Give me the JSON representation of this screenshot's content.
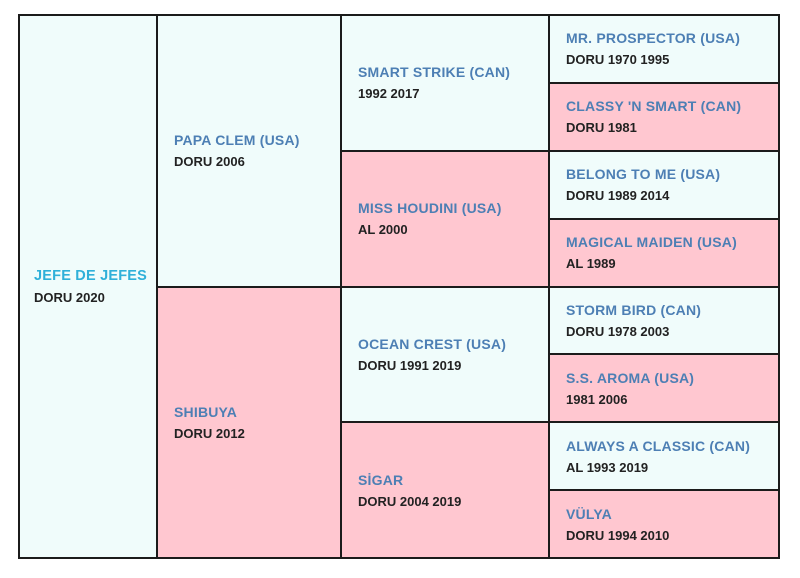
{
  "pedigree": {
    "subject": {
      "name": "JEFE DE JEFES",
      "info": "DORU 2020"
    },
    "sire": {
      "name": "PAPA CLEM (USA)",
      "info": "DORU 2006"
    },
    "dam": {
      "name": "SHIBUYA",
      "info": "DORU 2012"
    },
    "sire_sire": {
      "name": "SMART STRIKE (CAN)",
      "info": "1992 2017"
    },
    "sire_dam": {
      "name": "MISS HOUDINI (USA)",
      "info": "AL 2000"
    },
    "dam_sire": {
      "name": "OCEAN CREST (USA)",
      "info": "DORU 1991 2019"
    },
    "dam_dam": {
      "name": "SİGAR",
      "info": "DORU 2004 2019"
    },
    "gen4": [
      {
        "name": "MR. PROSPECTOR (USA)",
        "info": "DORU 1970 1995"
      },
      {
        "name": "CLASSY 'N SMART (CAN)",
        "info": "DORU 1981"
      },
      {
        "name": "BELONG TO ME (USA)",
        "info": "DORU 1989 2014"
      },
      {
        "name": "MAGICAL MAIDEN (USA)",
        "info": "AL 1989"
      },
      {
        "name": "STORM BIRD (CAN)",
        "info": "DORU 1978 2003"
      },
      {
        "name": "S.S. AROMA (USA)",
        "info": "1981 2006"
      },
      {
        "name": "ALWAYS A CLASSIC (CAN)",
        "info": "AL 1993 2019"
      },
      {
        "name": "VÜLYA",
        "info": "DORU 1994 2010"
      }
    ]
  },
  "colors": {
    "male_bg": "#f0fcfb",
    "female_bg": "#ffc7d0",
    "name_text": "#4d7fb4",
    "subject_name_text": "#2fb0d9",
    "info_text": "#222222",
    "border": "#1b1b1b"
  }
}
